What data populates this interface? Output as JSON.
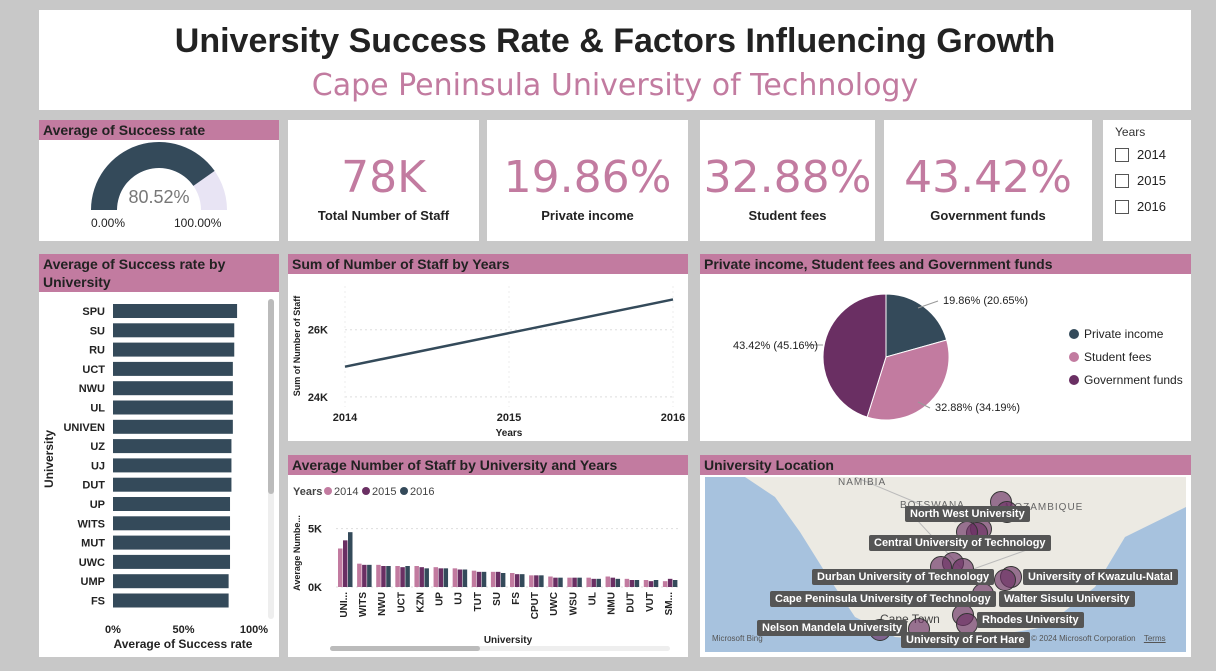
{
  "header": {
    "title": "University Success Rate & Factors Influencing Growth",
    "subtitle": "Cape Peninsula University of Technology"
  },
  "gauge": {
    "title": "Average of Success rate",
    "value": "80.52%",
    "value_fraction": 0.8052,
    "min_label": "0.00%",
    "max_label": "100.00%"
  },
  "kpis": [
    {
      "value": "78K",
      "label": "Total Number of Staff"
    },
    {
      "value": "19.86%",
      "label": "Private income"
    },
    {
      "value": "32.88%",
      "label": "Student fees"
    },
    {
      "value": "43.42%",
      "label": "Government funds"
    }
  ],
  "slicer": {
    "title": "Years",
    "options": [
      "2014",
      "2015",
      "2016"
    ]
  },
  "colors": {
    "accent": "#c27ba0",
    "dark": "#344a5a",
    "plum": "#6a2f63",
    "pink": "#c27ba0"
  },
  "chart_data": [
    {
      "type": "bar",
      "orientation": "horizontal",
      "title": "Average of Success rate by University",
      "xlabel": "Average of Success rate",
      "ylabel": "University",
      "categories": [
        "SPU",
        "SU",
        "RU",
        "UCT",
        "NWU",
        "UL",
        "UNIVEN",
        "UZ",
        "UJ",
        "DUT",
        "UP",
        "WITS",
        "MUT",
        "UWC",
        "UMP",
        "FS"
      ],
      "values": [
        0.88,
        0.86,
        0.86,
        0.85,
        0.85,
        0.85,
        0.85,
        0.84,
        0.84,
        0.84,
        0.83,
        0.83,
        0.83,
        0.83,
        0.82,
        0.82
      ],
      "xticks": [
        "0%",
        "50%",
        "100%"
      ],
      "xlim": [
        0,
        1
      ]
    },
    {
      "type": "line",
      "title": "Sum of Number of Staff by Years",
      "xlabel": "Years",
      "ylabel": "Sum of Number of Staff",
      "x": [
        "2014",
        "2015",
        "2016"
      ],
      "values": [
        24900,
        25900,
        26900
      ],
      "yticks": [
        "24K",
        "26K"
      ],
      "ylim": [
        23700,
        27300
      ]
    },
    {
      "type": "pie",
      "title": "Private income, Student fees and Government funds",
      "slices": [
        {
          "name": "Private income",
          "value": 20.65,
          "label": "19.86% (20.65%)"
        },
        {
          "name": "Student fees",
          "value": 34.19,
          "label": "32.88% (34.19%)"
        },
        {
          "name": "Government funds",
          "value": 45.16,
          "label": "43.42% (45.16%)"
        }
      ]
    },
    {
      "type": "bar",
      "title": "Average Number of Staff by University and Years",
      "xlabel": "University",
      "ylabel": "Average Numbe...",
      "legend_title": "Years",
      "categories": [
        "UNI...",
        "WITS",
        "NWU",
        "UCT",
        "KZN",
        "UP",
        "UJ",
        "TUT",
        "SU",
        "FS",
        "CPUT",
        "UWC",
        "WSU",
        "UL",
        "NMU",
        "DUT",
        "VUT",
        "SM..."
      ],
      "yticks": [
        "0K",
        "5K"
      ],
      "ylim": [
        0,
        6000
      ],
      "series": [
        {
          "name": "2014",
          "values": [
            3300,
            2000,
            1900,
            1800,
            1800,
            1700,
            1600,
            1400,
            1300,
            1200,
            1000,
            900,
            800,
            800,
            900,
            700,
            600,
            500
          ]
        },
        {
          "name": "2015",
          "values": [
            4000,
            1900,
            1800,
            1700,
            1700,
            1600,
            1500,
            1300,
            1300,
            1100,
            1000,
            800,
            800,
            700,
            800,
            600,
            500,
            700
          ]
        },
        {
          "name": "2016",
          "values": [
            4700,
            1900,
            1800,
            1800,
            1600,
            1600,
            1500,
            1300,
            1200,
            1100,
            1000,
            800,
            800,
            700,
            700,
            600,
            600,
            600
          ]
        }
      ]
    }
  ],
  "map": {
    "title": "University Location",
    "country_labels": [
      "NAMIBIA",
      "BOTSWANA",
      "MOZAMBIQUE"
    ],
    "city_label": "Cape Town",
    "universities": [
      "North West University",
      "Central University of Technology",
      "Durban University of Technology",
      "University of Kwazulu-Natal",
      "Cape Peninsula University of Technology",
      "Walter Sisulu University",
      "Rhodes University",
      "Nelson Mandela University",
      "University of Fort Hare"
    ],
    "copyright": "© 2024 Microsoft Corporation",
    "terms": "Terms",
    "bing": "Microsoft Bing"
  }
}
